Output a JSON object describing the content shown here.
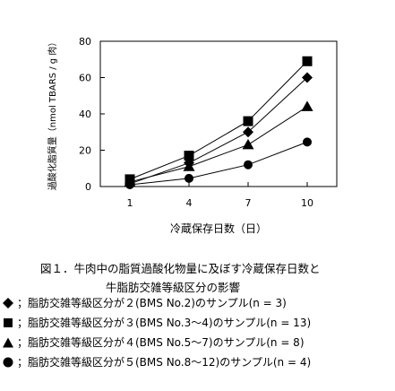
{
  "chart_data": {
    "type": "line",
    "x": [
      1,
      4,
      7,
      10
    ],
    "xlabel": "冷蔵保存日数（日）",
    "ylabel": "過酸化脂質量（nmol TBARS / g 肉）",
    "ylim": [
      0,
      80
    ],
    "yticks": [
      0,
      20,
      40,
      60,
      80
    ],
    "xtick_labels": [
      "1",
      "4",
      "7",
      "10"
    ],
    "grid": false,
    "series": [
      {
        "marker": "diamond",
        "values": [
          1.5,
          13,
          30,
          60
        ]
      },
      {
        "marker": "square",
        "values": [
          4,
          17,
          36,
          69
        ]
      },
      {
        "marker": "triangle",
        "values": [
          2.5,
          11,
          23,
          44
        ]
      },
      {
        "marker": "circle",
        "values": [
          1,
          4.5,
          12,
          24.5
        ]
      }
    ]
  },
  "caption": {
    "line1": "図１．牛肉中の脂質過酸化物量に及ぼす冷蔵保存日数と",
    "line2": "牛脂肪交雑等級区分の影響"
  },
  "legend": [
    {
      "marker": "diamond",
      "text": "；脂肪交雑等級区分が２(BMS No.2)のサンプル(n = 3)"
    },
    {
      "marker": "square",
      "text": "；脂肪交雑等級区分が３(BMS No.3～4)のサンプル(n = 13)"
    },
    {
      "marker": "triangle",
      "text": "；脂肪交雑等級区分が４(BMS No.5～7)のサンプル(n = 8)"
    },
    {
      "marker": "circle",
      "text": "；脂肪交雑等級区分が５(BMS No.8～12)のサンプル(n = 4)"
    }
  ]
}
